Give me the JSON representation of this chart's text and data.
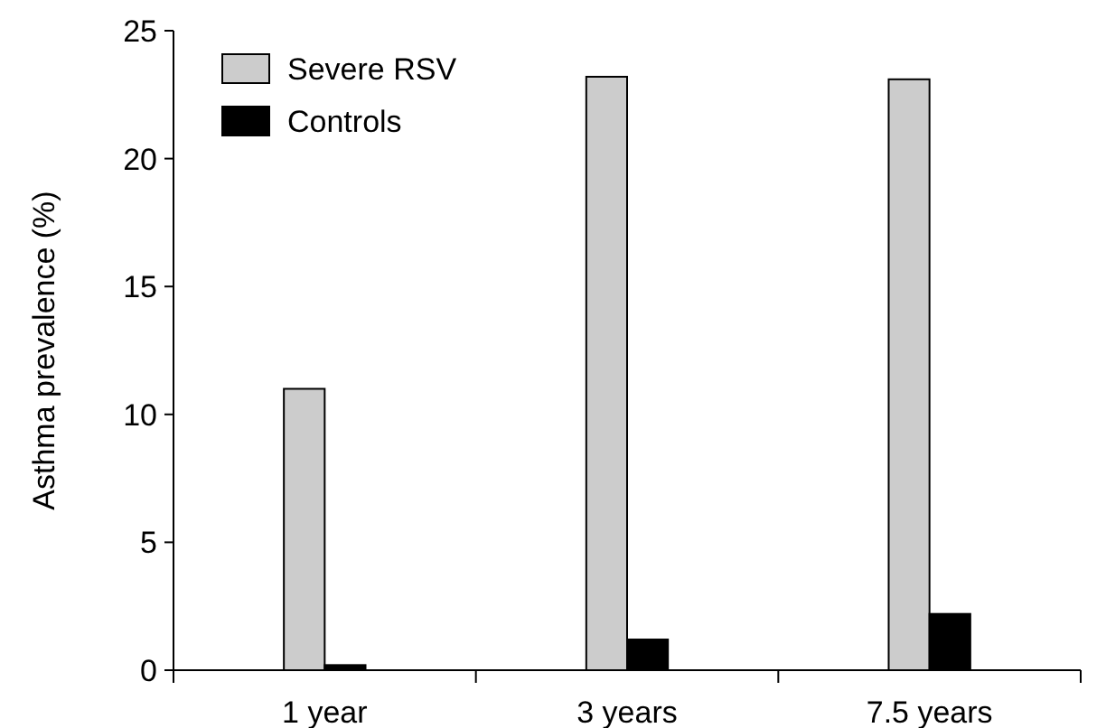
{
  "chart_data": {
    "type": "bar",
    "ylabel": "Asthma prevalence (%)",
    "categories": [
      "1 year",
      "3 years",
      "7.5 years"
    ],
    "series": [
      {
        "name": "Severe RSV",
        "color": "#cccccc",
        "values": [
          11.0,
          23.2,
          23.1
        ]
      },
      {
        "name": "Controls",
        "color": "#000000",
        "values": [
          0.2,
          1.2,
          2.2
        ]
      }
    ],
    "ylim": [
      0,
      25
    ],
    "yticks": [
      0,
      5,
      10,
      15,
      20,
      25
    ],
    "grid": false,
    "legend": "top left"
  }
}
